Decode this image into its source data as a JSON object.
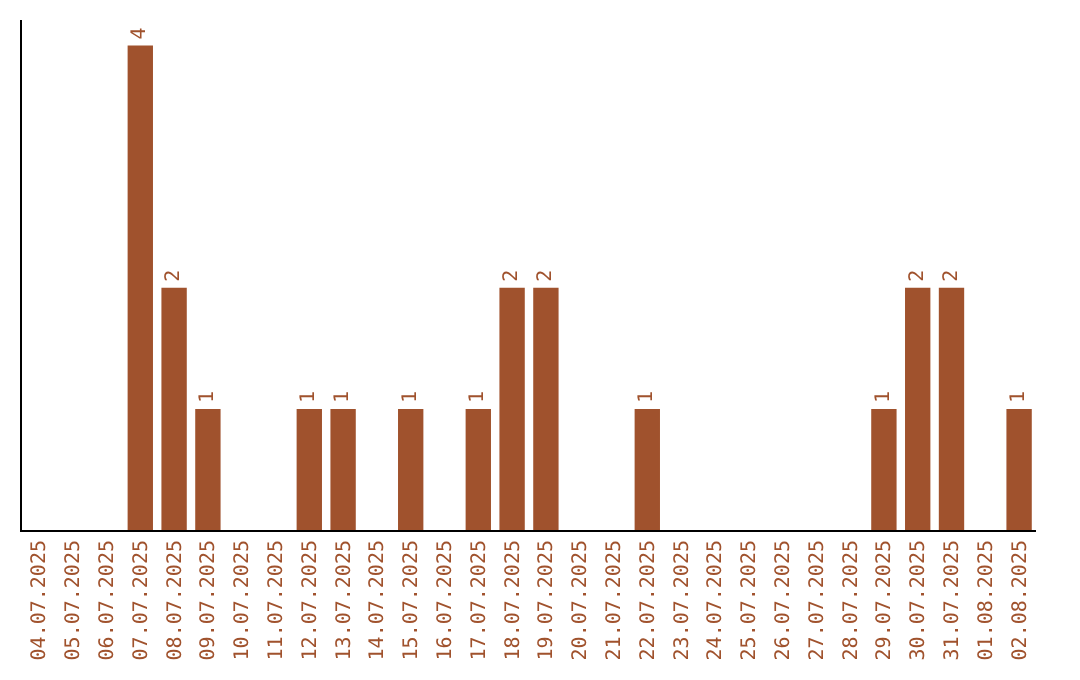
{
  "chart_data": {
    "type": "bar",
    "categories": [
      "04.07.2025",
      "05.07.2025",
      "06.07.2025",
      "07.07.2025",
      "08.07.2025",
      "09.07.2025",
      "10.07.2025",
      "11.07.2025",
      "12.07.2025",
      "13.07.2025",
      "14.07.2025",
      "15.07.2025",
      "16.07.2025",
      "17.07.2025",
      "18.07.2025",
      "19.07.2025",
      "20.07.2025",
      "21.07.2025",
      "22.07.2025",
      "23.07.2025",
      "24.07.2025",
      "25.07.2025",
      "26.07.2025",
      "27.07.2025",
      "28.07.2025",
      "29.07.2025",
      "30.07.2025",
      "31.07.2025",
      "01.08.2025",
      "02.08.2025"
    ],
    "values": [
      0,
      0,
      0,
      4,
      2,
      1,
      0,
      0,
      1,
      1,
      0,
      1,
      0,
      1,
      2,
      2,
      0,
      0,
      1,
      0,
      0,
      0,
      0,
      0,
      0,
      1,
      2,
      2,
      0,
      1
    ],
    "value_labels": [
      null,
      null,
      null,
      "4",
      "2",
      "1",
      null,
      null,
      "1",
      "1",
      null,
      "1",
      null,
      "1",
      "2",
      "2",
      null,
      null,
      "1",
      null,
      null,
      null,
      null,
      null,
      null,
      "1",
      "2",
      "2",
      null,
      "1"
    ],
    "color": "#a0522d",
    "grid": false,
    "legend": false
  }
}
